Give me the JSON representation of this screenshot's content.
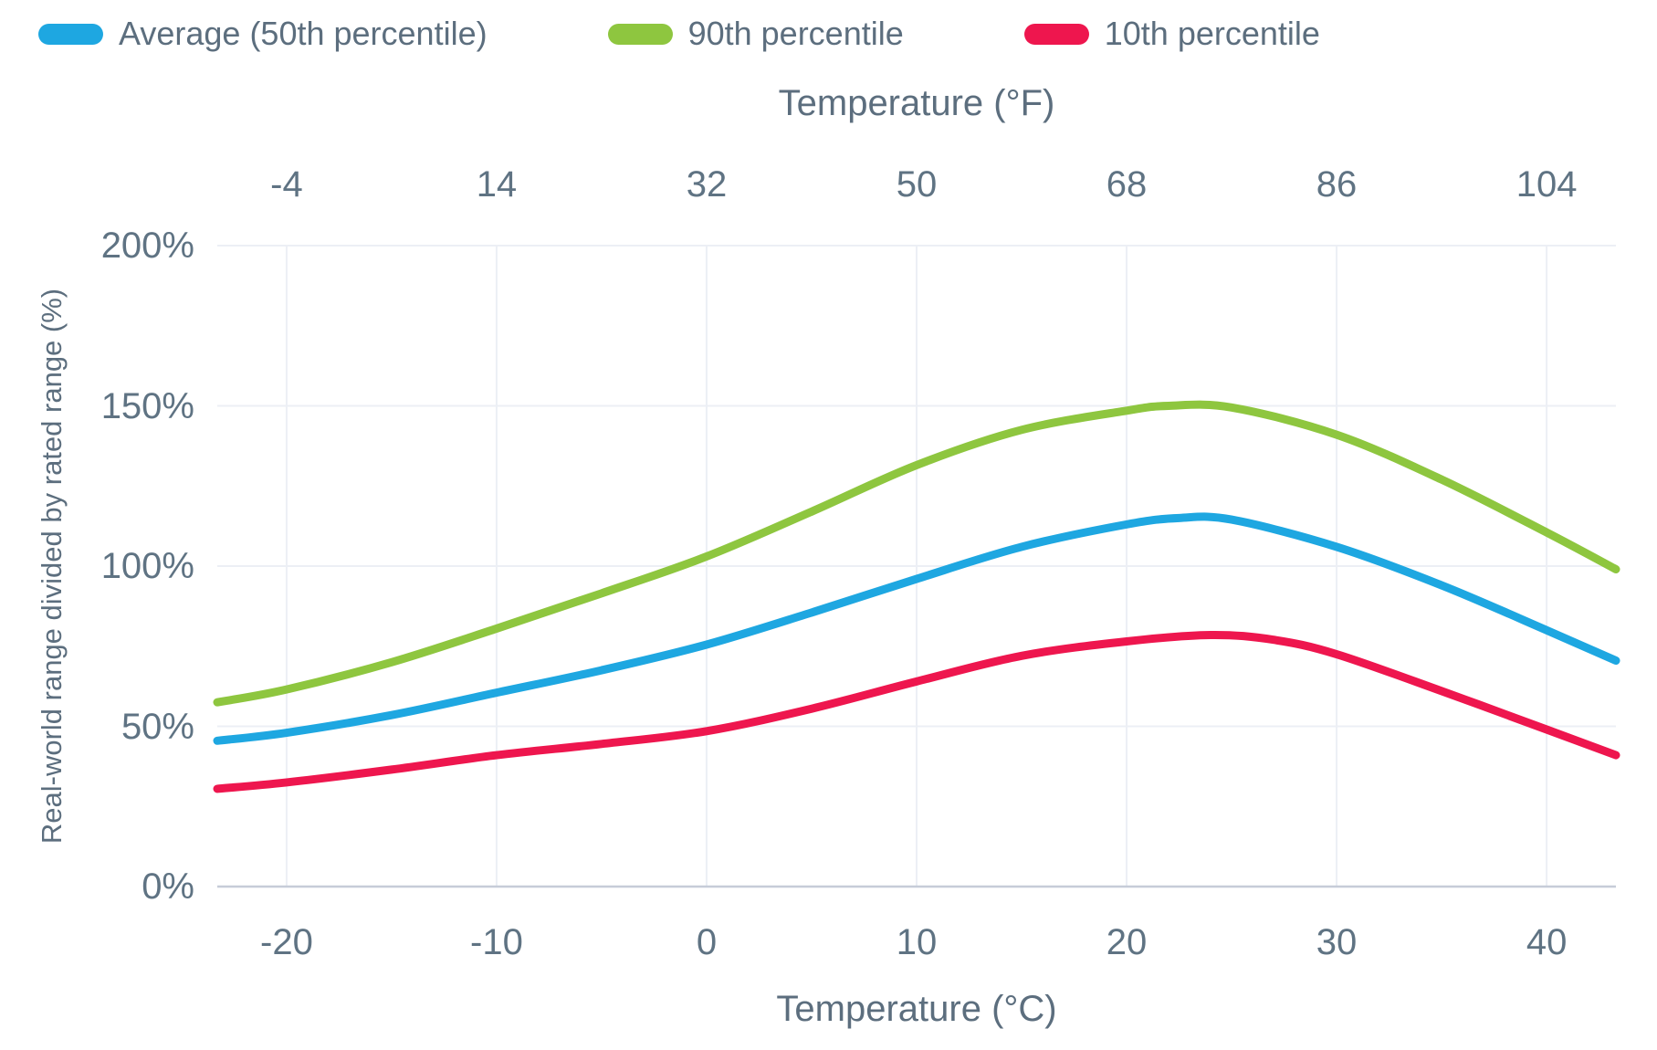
{
  "legend": {
    "items": [
      {
        "label": "Average (50th percentile)",
        "color": "#1EA7E1"
      },
      {
        "label": "90th percentile",
        "color": "#8EC63F"
      },
      {
        "label": "10th percentile",
        "color": "#EE164E"
      }
    ]
  },
  "colors": {
    "text": "#5C6E7E",
    "tick_text": "#5F7383",
    "gridline": "#ECEFF5",
    "axis_line": "#C6CCD8",
    "background": "#FFFFFF"
  },
  "chart_data": {
    "type": "line",
    "title": "",
    "xlabel_top": "Temperature (°F)",
    "xlabel_bottom": "Temperature (°C)",
    "ylabel": "Real-world range divided by rated range (%)",
    "x_unit": "celsius",
    "x_domain_c": [
      -23.3,
      43.3
    ],
    "ylim": [
      0,
      200
    ],
    "grid": true,
    "legend_position": "top-left",
    "x_ticks": [
      [
        -20,
        "-20",
        "-4"
      ],
      [
        -10,
        "-10",
        "14"
      ],
      [
        0,
        "0",
        "32"
      ],
      [
        10,
        "10",
        "50"
      ],
      [
        20,
        "20",
        "68"
      ],
      [
        30,
        "30",
        "86"
      ],
      [
        40,
        "40",
        "104"
      ]
    ],
    "y_ticks": [
      [
        0,
        "0%"
      ],
      [
        50,
        "50%"
      ],
      [
        100,
        "100%"
      ],
      [
        150,
        "150%"
      ],
      [
        200,
        "200%"
      ]
    ],
    "series": [
      {
        "name": "90th percentile",
        "color": "#8EC63F",
        "points": [
          [
            -23.3,
            57.5
          ],
          [
            -20,
            61.5
          ],
          [
            -15,
            70
          ],
          [
            -10,
            80.5
          ],
          [
            -5,
            91.5
          ],
          [
            0,
            103
          ],
          [
            5,
            117
          ],
          [
            10,
            131.5
          ],
          [
            15,
            142.5
          ],
          [
            20,
            148.5
          ],
          [
            22,
            150
          ],
          [
            25,
            149.5
          ],
          [
            30,
            141
          ],
          [
            35,
            127
          ],
          [
            40,
            110.5
          ],
          [
            43.3,
            99
          ]
        ]
      },
      {
        "name": "Average (50th percentile)",
        "color": "#1EA7E1",
        "points": [
          [
            -23.3,
            45.5
          ],
          [
            -20,
            48
          ],
          [
            -15,
            53.5
          ],
          [
            -10,
            60.5
          ],
          [
            -5,
            67.5
          ],
          [
            0,
            75.5
          ],
          [
            5,
            85.5
          ],
          [
            10,
            96
          ],
          [
            15,
            106
          ],
          [
            20,
            113
          ],
          [
            22.5,
            115
          ],
          [
            25,
            114.5
          ],
          [
            30,
            106
          ],
          [
            35,
            94
          ],
          [
            40,
            80
          ],
          [
            43.3,
            70.5
          ]
        ]
      },
      {
        "name": "10th percentile",
        "color": "#EE164E",
        "points": [
          [
            -23.3,
            30.5
          ],
          [
            -20,
            32.5
          ],
          [
            -15,
            36.5
          ],
          [
            -10,
            41
          ],
          [
            -5,
            44.5
          ],
          [
            0,
            48.5
          ],
          [
            5,
            55.5
          ],
          [
            10,
            64
          ],
          [
            15,
            72
          ],
          [
            20,
            76.5
          ],
          [
            24,
            78.5
          ],
          [
            27,
            77
          ],
          [
            30,
            72.5
          ],
          [
            35,
            61
          ],
          [
            40,
            49
          ],
          [
            43.3,
            41
          ]
        ]
      }
    ]
  }
}
